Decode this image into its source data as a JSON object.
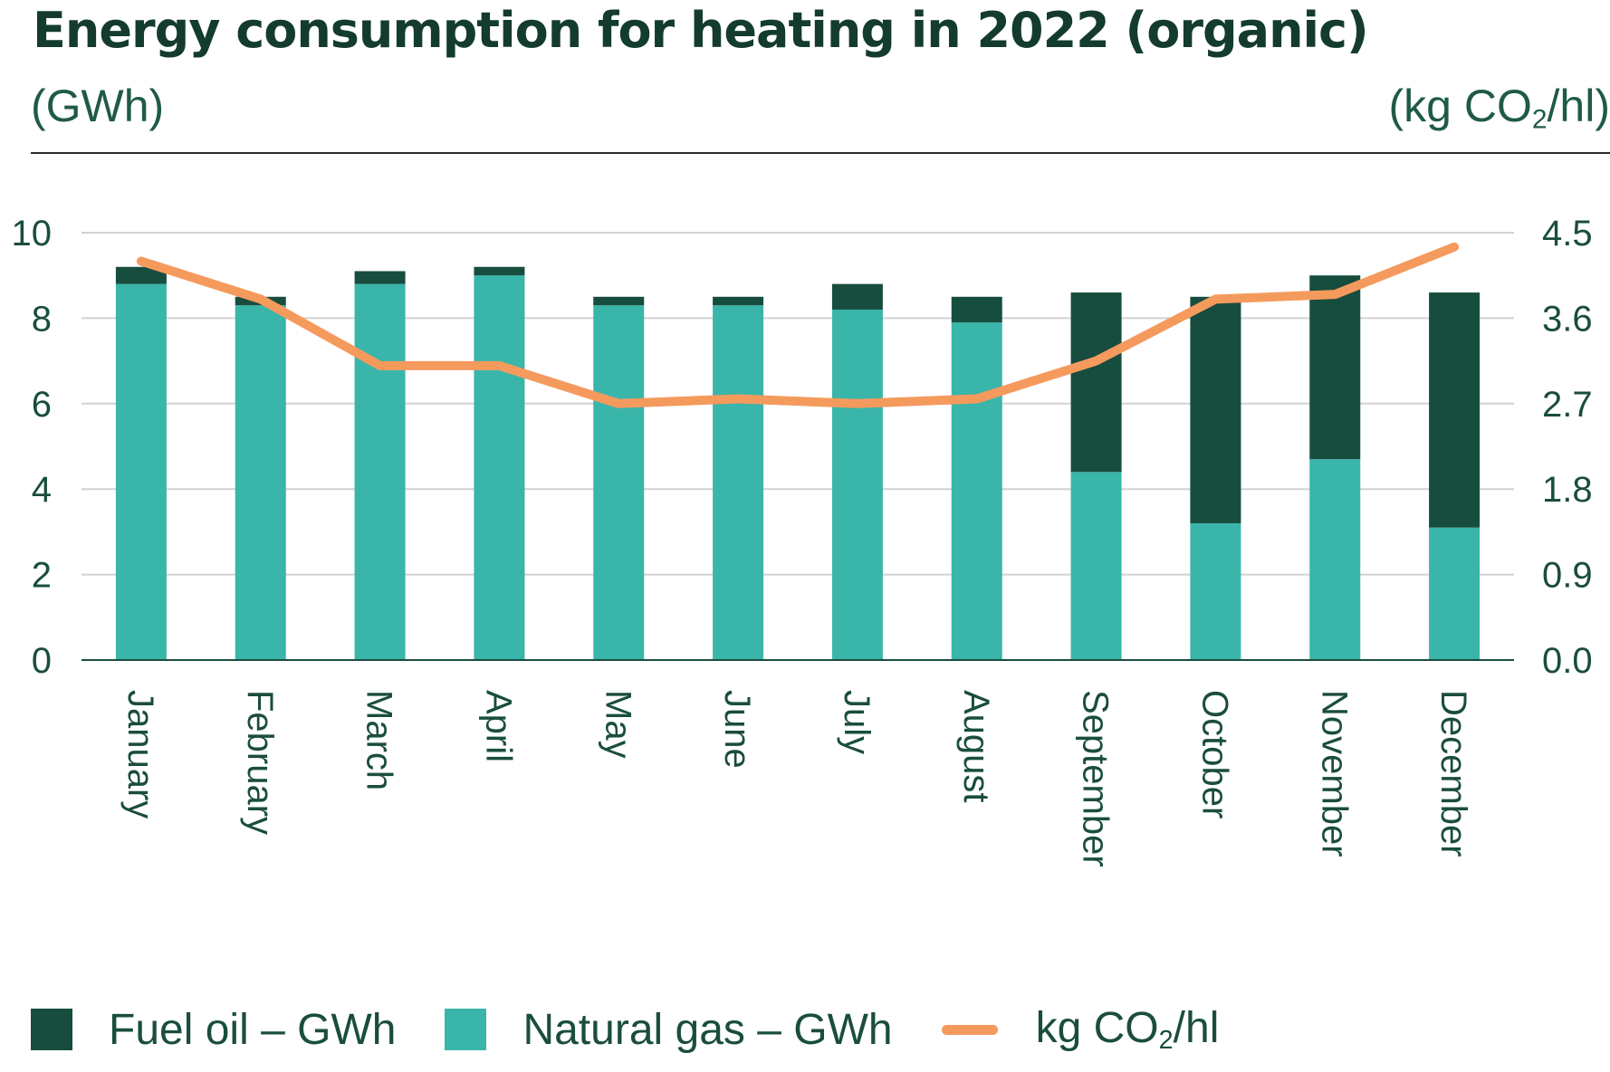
{
  "title": "Energy consumption for heating in 2022 (organic)",
  "left_unit": "(GWh)",
  "right_unit": {
    "pre": "(kg CO",
    "sub": "2",
    "post": "/hl)"
  },
  "legend": {
    "fuel_oil": "Fuel oil – GWh",
    "natural_gas": "Natural gas – GWh",
    "co2": {
      "pre": "kg CO",
      "sub": "2",
      "post": "/hl"
    }
  },
  "colors": {
    "fuel_oil": "#174d3e",
    "natural_gas": "#3ab5aa",
    "co2": "#f59a5d",
    "grid": "#d2d2d2",
    "axis": "#1a4d3f"
  },
  "chart_data": {
    "type": "bar",
    "stacked": true,
    "categories": [
      "January",
      "February",
      "March",
      "April",
      "May",
      "June",
      "July",
      "August",
      "September",
      "October",
      "November",
      "December"
    ],
    "series": [
      {
        "name": "Natural gas – GWh",
        "axis": "left",
        "values": [
          8.8,
          8.3,
          8.8,
          9.0,
          8.3,
          8.3,
          8.2,
          7.9,
          4.4,
          3.2,
          4.7,
          3.1
        ]
      },
      {
        "name": "Fuel oil – GWh",
        "axis": "left",
        "values": [
          0.4,
          0.2,
          0.3,
          0.2,
          0.2,
          0.2,
          0.6,
          0.6,
          4.2,
          5.3,
          4.3,
          5.5
        ]
      },
      {
        "name": "kg CO2/hl",
        "type": "line",
        "axis": "right",
        "values": [
          4.2,
          3.8,
          3.1,
          3.1,
          2.7,
          2.75,
          2.7,
          2.75,
          3.15,
          3.8,
          3.85,
          4.35
        ]
      }
    ],
    "ylim": [
      0,
      10
    ],
    "yticks": [
      "0",
      "2",
      "4",
      "6",
      "8",
      "10"
    ],
    "y2lim": [
      0,
      4.5
    ],
    "y2ticks": [
      "0.0",
      "0.9",
      "1.8",
      "2.7",
      "3.6",
      "4.5"
    ],
    "grid": true,
    "legend_position": "bottom"
  }
}
